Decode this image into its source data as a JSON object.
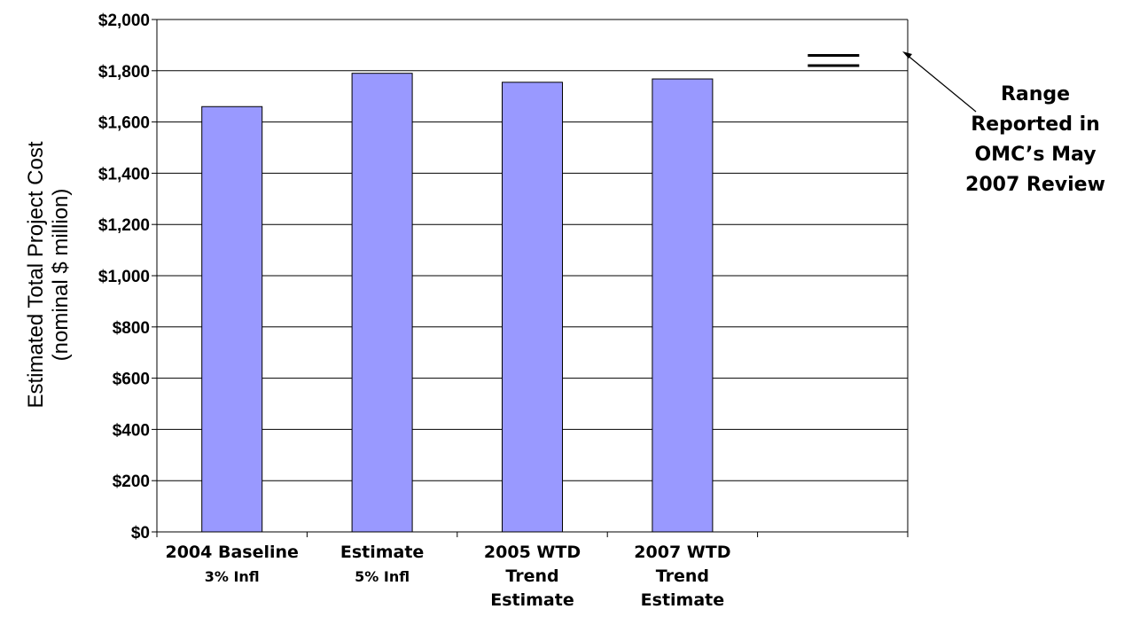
{
  "chart_data": {
    "type": "bar",
    "categories": [
      "2004 Baseline 3% Infl",
      "Estimate 5% Infl",
      "2005 WTD Trend Estimate",
      "2007 WTD Trend Estimate",
      ""
    ],
    "category_label_lines": [
      [
        "2004 Baseline",
        "3% Infl"
      ],
      [
        "Estimate",
        "5% Infl"
      ],
      [
        "2005 WTD",
        "Trend",
        "Estimate"
      ],
      [
        "2007 WTD",
        "Trend",
        "Estimate"
      ],
      []
    ],
    "values": [
      1660,
      1790,
      1755,
      1768,
      null
    ],
    "range_reported": [
      1820,
      1860
    ],
    "ylabel_lines": [
      "Estimated Total Project Cost",
      "(nominal $ million)"
    ],
    "ylim": [
      0,
      2000
    ],
    "yticks": [
      "$0",
      "$200",
      "$400",
      "$600",
      "$800",
      "$1,000",
      "$1,200",
      "$1,400",
      "$1,600",
      "$1,800",
      "$2,000"
    ],
    "annotation_lines": [
      "Range",
      "Reported in",
      "OMC’s May",
      "2007 Review"
    ],
    "grid": true,
    "legend": "none",
    "colors": {
      "bar_fill": "#9999ff",
      "bar_stroke": "#000000",
      "grid": "#000000"
    }
  }
}
